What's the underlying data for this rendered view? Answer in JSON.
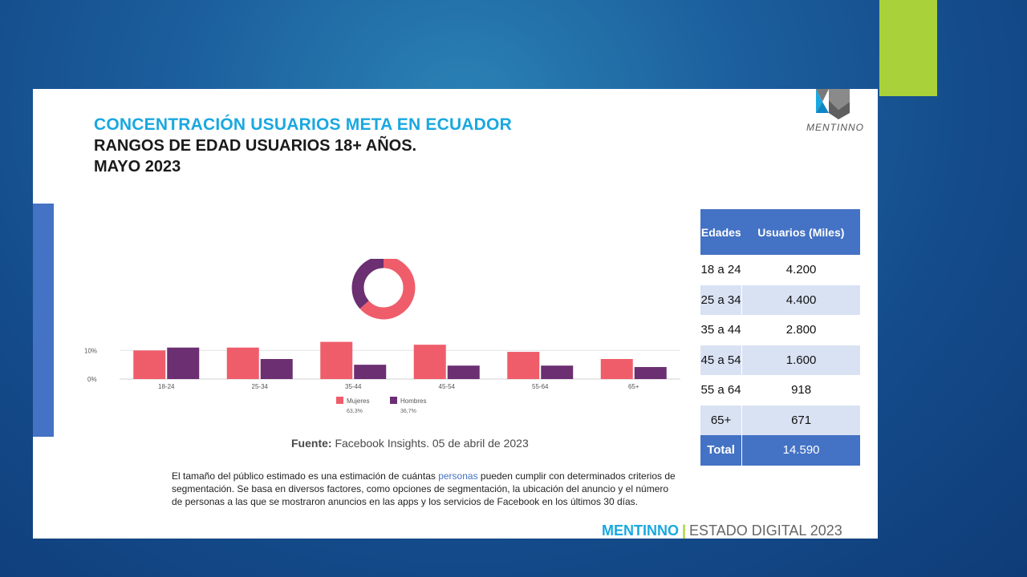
{
  "header": {
    "title": "CONCENTRACIÓN USUARIOS META EN ECUADOR",
    "subtitle1": "RANGOS DE EDAD USUARIOS 18+ AÑOS.",
    "subtitle2": "MAYO 2023",
    "logo_text": "MENTINNO"
  },
  "chart_data": [
    {
      "type": "pie",
      "series": [
        {
          "name": "Mujeres",
          "value": 63.3,
          "color": "#ef5d6a"
        },
        {
          "name": "Hombres",
          "value": 36.7,
          "color": "#6b2f72"
        }
      ]
    },
    {
      "type": "bar",
      "categories": [
        "18-24",
        "25-34",
        "35-44",
        "45-54",
        "55-64",
        "65+"
      ],
      "series": [
        {
          "name": "Mujeres",
          "sublabel": "63,3%",
          "color": "#ef5d6a",
          "values": [
            10,
            11,
            13,
            12,
            9.5,
            7
          ]
        },
        {
          "name": "Hombres",
          "sublabel": "36,7%",
          "color": "#6b2f72",
          "values": [
            11,
            7,
            5,
            4.7,
            4.7,
            4.2
          ]
        }
      ],
      "ytick_labels": [
        "10%",
        "0%"
      ],
      "ylim": [
        0,
        14
      ],
      "grid": true,
      "legend_position": "bottom"
    }
  ],
  "source": {
    "label": "Fuente:",
    "text": " Facebook Insights. 05 de abril de 2023"
  },
  "description": {
    "part1": "El tamaño del público estimado es una estimación de cuántas ",
    "highlight": "personas",
    "part2": " pueden cumplir con determinados criterios de segmentación. Se basa en diversos factores, como opciones de segmentación, la ubicación del anuncio y el número de personas a las que se mostraron anuncios en las apps y los servicios de Facebook en los últimos 30 días."
  },
  "table": {
    "headers": [
      "Edades",
      "Usuarios (Miles)"
    ],
    "rows": [
      {
        "age": "18 a 24",
        "users": "4.200"
      },
      {
        "age": "25 a 34",
        "users": "4.400"
      },
      {
        "age": "35 a 44",
        "users": "2.800"
      },
      {
        "age": "45 a 54",
        "users": "1.600"
      },
      {
        "age": "55 a 64",
        "users": "918"
      },
      {
        "age": "65+",
        "users": "671"
      }
    ],
    "total_label": "Total",
    "total_value": "14.590"
  },
  "footer": {
    "brand": "MENTINNO",
    "separator": "|",
    "text": "ESTADO DIGITAL 2023"
  },
  "colors": {
    "accent_blue": "#1aa8e0",
    "table_blue": "#4472c4",
    "green": "#a8d13a"
  }
}
